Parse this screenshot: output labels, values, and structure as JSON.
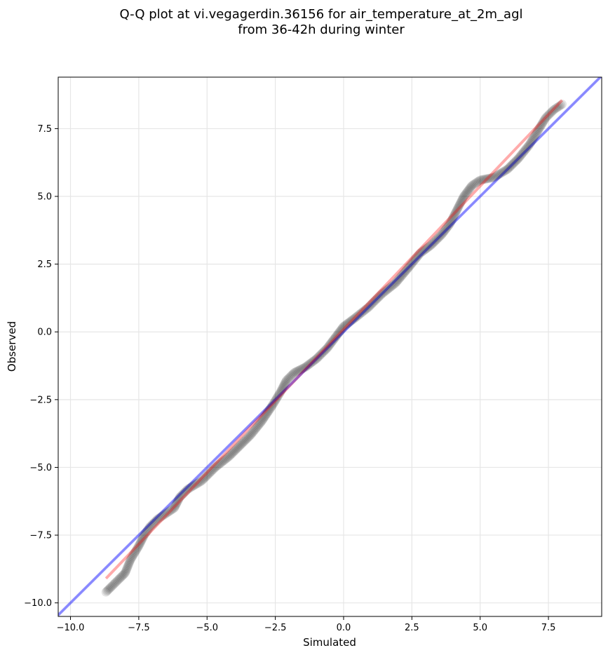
{
  "chart_data": {
    "type": "scatter",
    "title_lines": [
      "Q-Q plot at vi.vegagerdin.36156 for air_temperature_at_2m_agl",
      "from 36-42h during winter"
    ],
    "xlabel": "Simulated",
    "ylabel": "Observed",
    "xlim": [
      -10.45,
      9.45
    ],
    "ylim": [
      -10.5,
      9.4
    ],
    "xticks": [
      -10.0,
      -7.5,
      -5.0,
      -2.5,
      0.0,
      2.5,
      5.0,
      7.5
    ],
    "xtick_labels": [
      "−10.0",
      "−7.5",
      "−5.0",
      "−2.5",
      "0.0",
      "2.5",
      "5.0",
      "7.5"
    ],
    "yticks": [
      -10.0,
      -7.5,
      -5.0,
      -2.5,
      0.0,
      2.5,
      5.0,
      7.5
    ],
    "ytick_labels": [
      "−10.0",
      "−7.5",
      "−5.0",
      "−2.5",
      "0.0",
      "2.5",
      "5.0",
      "7.5"
    ],
    "grid": true,
    "reference_line": {
      "slope": 1,
      "intercept": 0,
      "color": "#0000ff",
      "opacity": 0.33
    },
    "fit_line": {
      "x": [
        -8.7,
        8.0
      ],
      "y": [
        -9.1,
        8.55
      ],
      "color": "#ff0000",
      "opacity": 0.33
    },
    "quantile_path": [
      [
        -8.7,
        -9.6
      ],
      [
        -8.5,
        -9.4
      ],
      [
        -8.2,
        -9.1
      ],
      [
        -8.0,
        -8.9
      ],
      [
        -7.8,
        -8.4
      ],
      [
        -7.5,
        -7.9
      ],
      [
        -7.3,
        -7.5
      ],
      [
        -7.1,
        -7.2
      ],
      [
        -6.8,
        -6.9
      ],
      [
        -6.5,
        -6.7
      ],
      [
        -6.2,
        -6.5
      ],
      [
        -6.0,
        -6.1
      ],
      [
        -5.7,
        -5.8
      ],
      [
        -5.2,
        -5.5
      ],
      [
        -4.7,
        -5.0
      ],
      [
        -4.2,
        -4.6
      ],
      [
        -3.8,
        -4.2
      ],
      [
        -3.4,
        -3.8
      ],
      [
        -3.0,
        -3.3
      ],
      [
        -2.6,
        -2.7
      ],
      [
        -2.3,
        -2.2
      ],
      [
        -2.1,
        -1.8
      ],
      [
        -1.8,
        -1.5
      ],
      [
        -1.4,
        -1.3
      ],
      [
        -1.0,
        -1.0
      ],
      [
        -0.6,
        -0.6
      ],
      [
        -0.3,
        -0.2
      ],
      [
        0.0,
        0.2
      ],
      [
        0.4,
        0.5
      ],
      [
        0.9,
        0.9
      ],
      [
        1.4,
        1.4
      ],
      [
        1.9,
        1.8
      ],
      [
        2.4,
        2.4
      ],
      [
        2.8,
        2.9
      ],
      [
        3.2,
        3.2
      ],
      [
        3.6,
        3.6
      ],
      [
        3.9,
        4.0
      ],
      [
        4.2,
        4.6
      ],
      [
        4.4,
        5.0
      ],
      [
        4.7,
        5.4
      ],
      [
        5.0,
        5.6
      ],
      [
        5.5,
        5.7
      ],
      [
        6.0,
        6.0
      ],
      [
        6.4,
        6.4
      ],
      [
        6.8,
        6.9
      ],
      [
        7.1,
        7.4
      ],
      [
        7.4,
        7.9
      ],
      [
        7.7,
        8.2
      ],
      [
        8.0,
        8.4
      ]
    ]
  }
}
